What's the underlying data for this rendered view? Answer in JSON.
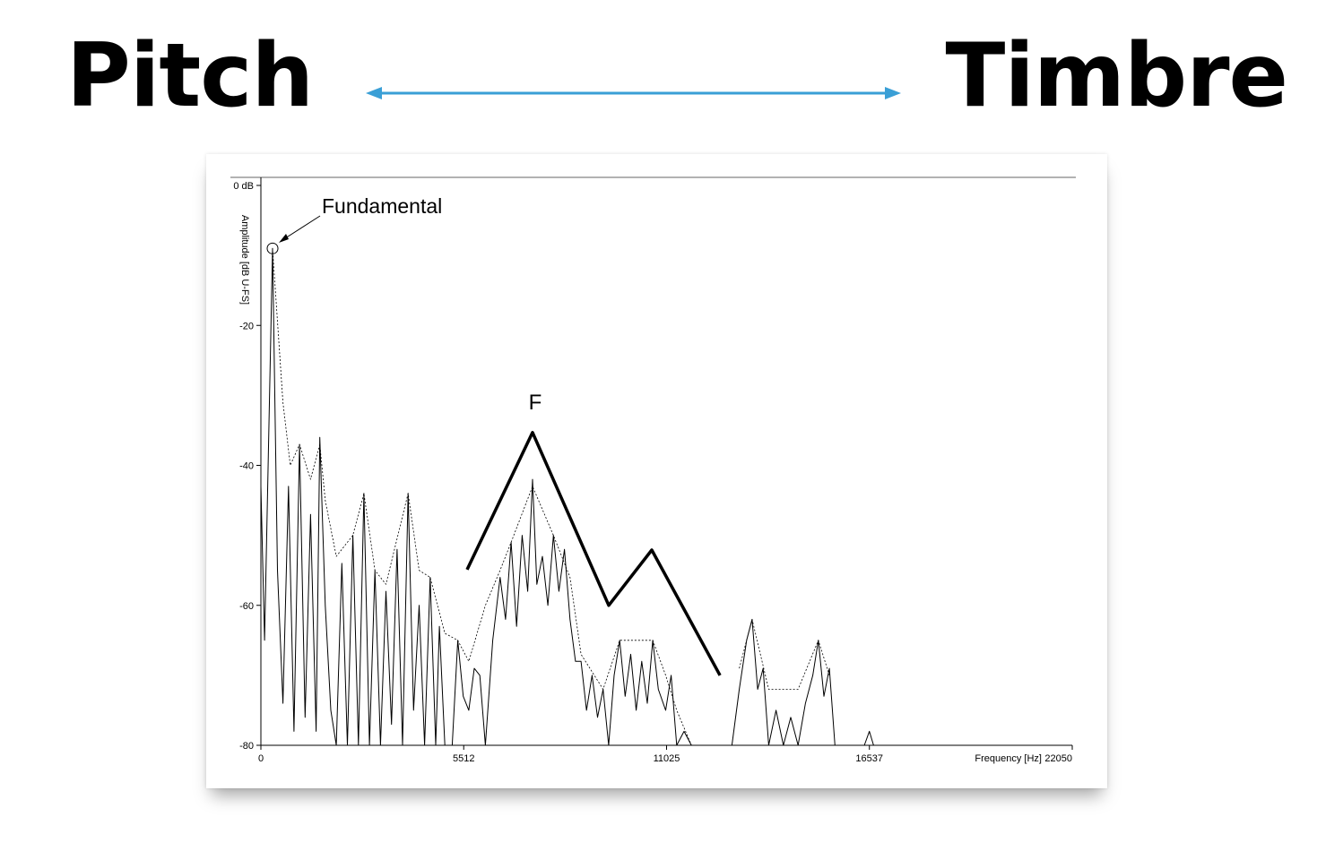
{
  "header": {
    "left": "Pitch",
    "right": "Timbre"
  },
  "chart_data": {
    "type": "line",
    "y_label": "Amplitude [dB U-FS]",
    "x_label": "Frequency [Hz]",
    "xlim": [
      0,
      22050
    ],
    "ylim": [
      -80,
      0
    ],
    "xticks": [
      0,
      5512,
      11025,
      16537,
      22050
    ],
    "yticks": [
      {
        "value": 0,
        "label": "0 dB"
      },
      -20,
      -40,
      -60,
      -80
    ],
    "annotations": [
      {
        "text": "Fundamental"
      },
      {
        "text": "F"
      }
    ],
    "series": [
      {
        "color": "#000000",
        "width": 1,
        "dash": false,
        "x": [
          0,
          100,
          317,
          450,
          600,
          750,
          900,
          1050,
          1200,
          1350,
          1500,
          1600,
          1750,
          1900,
          2050,
          2200,
          2350,
          2500,
          2650,
          2800,
          2950,
          3100,
          3250,
          3400,
          3550,
          3700,
          3850,
          4000,
          4150,
          4300,
          4450,
          4600,
          4750,
          4850,
          5000,
          5200,
          5350,
          5500,
          5650,
          5800,
          5950,
          6100,
          6300,
          6500,
          6650,
          6800,
          6950,
          7100,
          7250,
          7383,
          7500,
          7650,
          7800,
          7950,
          8100,
          8250,
          8400,
          8550,
          8700,
          8850,
          9000,
          9150,
          9300,
          9450,
          9600,
          9750,
          9900,
          10050,
          10200,
          10350,
          10500,
          10650,
          10800,
          11000,
          11150,
          11300,
          11500,
          11700,
          12000,
          12800,
          13000,
          13200,
          13350,
          13500,
          13650,
          13800,
          14000,
          14200,
          14400,
          14600,
          14800,
          15000,
          15150,
          15300,
          15450,
          15600,
          16000,
          16400,
          16537,
          16650,
          22050
        ],
        "values": [
          -43,
          -65,
          -9,
          -55,
          -74,
          -43,
          -78,
          -37,
          -76,
          -47,
          -78,
          -36,
          -60,
          -75,
          -80,
          -54,
          -80,
          -50,
          -80,
          -44,
          -80,
          -55,
          -80,
          -58,
          -77,
          -52,
          -80,
          -44,
          -75,
          -60,
          -80,
          -56,
          -80,
          -63,
          -80,
          -80,
          -65,
          -73,
          -75,
          -69,
          -70,
          -80,
          -65,
          -56,
          -62,
          -51,
          -63,
          -50,
          -58,
          -42,
          -57,
          -53,
          -60,
          -50,
          -58,
          -52,
          -62,
          -68,
          -68,
          -75,
          -70,
          -76,
          -72,
          -80,
          -70,
          -65,
          -73,
          -67,
          -75,
          -68,
          -74,
          -65,
          -72,
          -75,
          -70,
          -80,
          -78,
          -80,
          -80,
          -80,
          -72,
          -65,
          -62,
          -72,
          -69,
          -80,
          -75,
          -80,
          -76,
          -80,
          -74,
          -70,
          -65,
          -73,
          -69,
          -80,
          -80,
          -80,
          -78,
          -80,
          -80
        ]
      },
      {
        "color": "#000000",
        "width": 0.8,
        "dash": true,
        "x": [
          317,
          600,
          800,
          1050,
          1350,
          1600,
          1750,
          2050,
          2500,
          2800,
          3100,
          3400,
          4000,
          4300,
          4600,
          5000,
          5350,
          5650,
          6100,
          6500,
          6800,
          7383,
          7950,
          8400,
          8700,
          9300,
          9750,
          10650,
          11000,
          11300,
          11700,
          12400,
          13000,
          13350,
          13800,
          14600,
          15150,
          15450
        ],
        "values": [
          -9,
          -31,
          -40,
          -37,
          -42,
          -37,
          -45,
          -53,
          -50,
          -44,
          -55,
          -57,
          -44,
          -55,
          -56,
          -64,
          -65,
          -68,
          -60,
          -55,
          -51,
          -43,
          -50,
          -56,
          -67,
          -72,
          -65,
          -65,
          -70,
          -75,
          -80,
          null,
          -69,
          -62,
          -72,
          -72,
          -65,
          -70
        ]
      },
      {
        "color": "#000000",
        "width": 3.5,
        "dash": false,
        "x": [
          5604,
          7383,
          9454,
          10624,
          12476
        ],
        "values": [
          -54.9,
          -35.3,
          -60,
          -52.1,
          -70
        ]
      }
    ]
  }
}
